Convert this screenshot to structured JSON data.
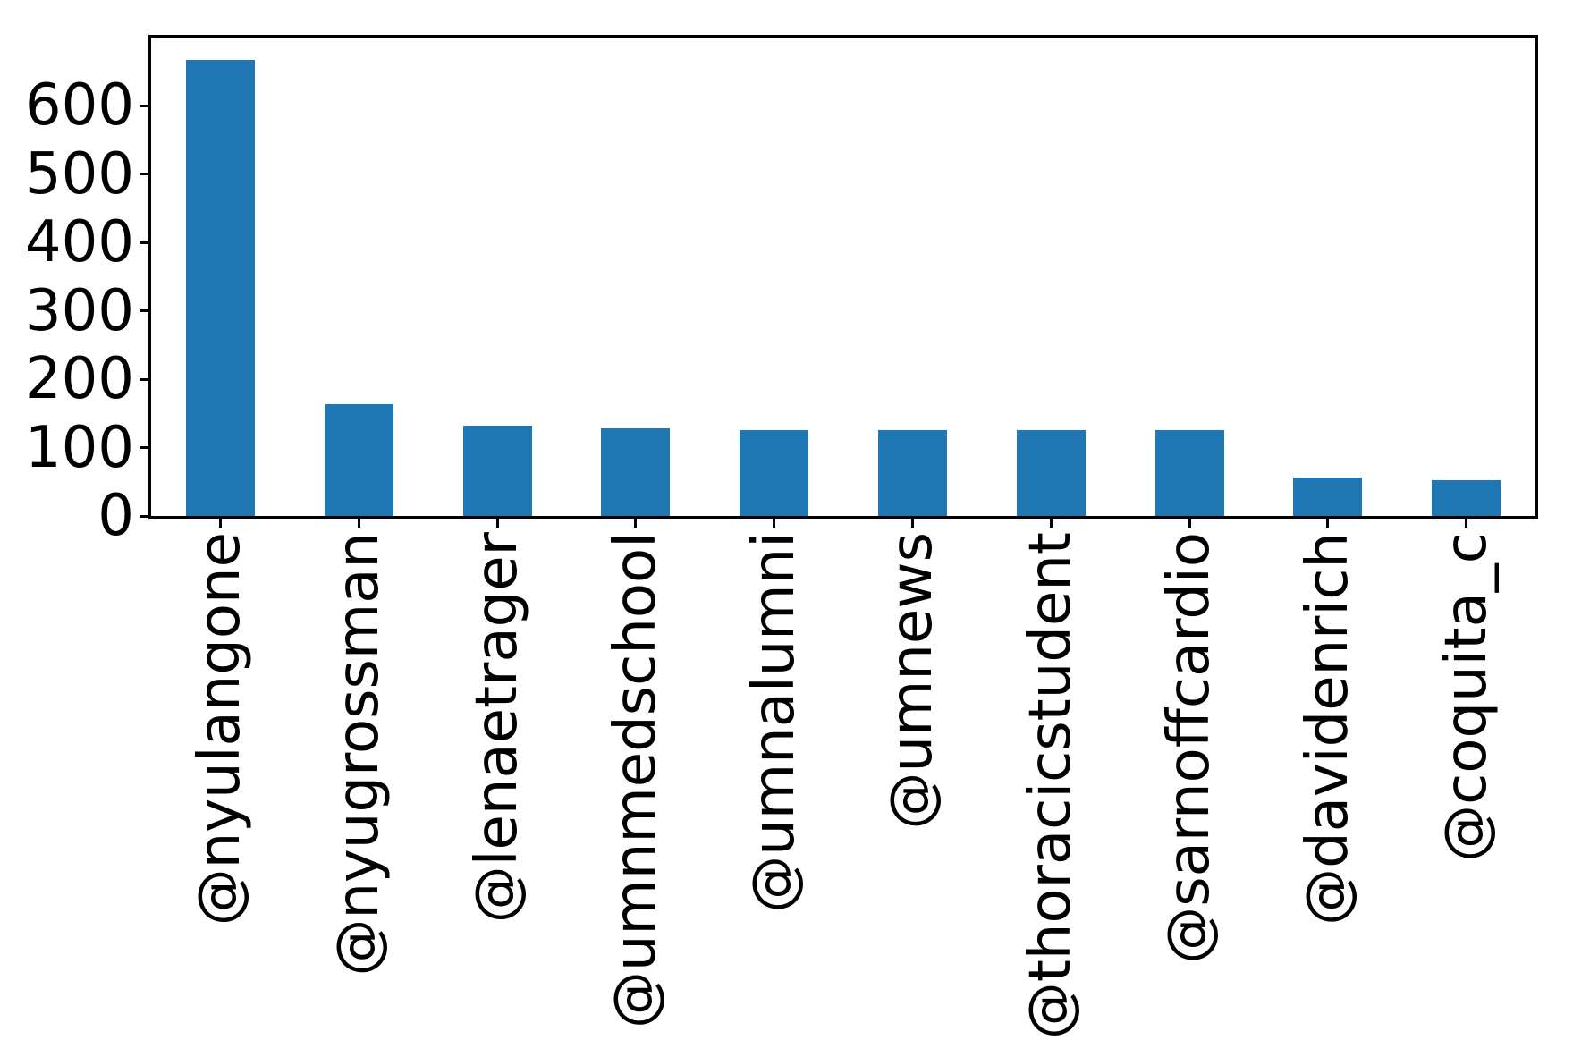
{
  "chart_data": {
    "type": "bar",
    "categories": [
      "@nyulangone",
      "@nyugrossman",
      "@lenaetrager",
      "@umnmedschool",
      "@umnalumni",
      "@umnews",
      "@thoracicstudent",
      "@sarnoffcardio",
      "@davidenrich",
      "@coquita_c"
    ],
    "values": [
      667,
      164,
      132,
      128,
      126,
      126,
      126,
      126,
      56,
      52
    ],
    "yticks": [
      0,
      100,
      200,
      300,
      400,
      500,
      600
    ],
    "ylim": [
      0,
      700
    ],
    "title": "",
    "xlabel": "",
    "ylabel": "",
    "bar_color": "#1f77b4",
    "axis_color": "#000000",
    "background_color": "#ffffff",
    "xtick_label_rotation_deg": 90,
    "grid": false,
    "legend": null
  }
}
